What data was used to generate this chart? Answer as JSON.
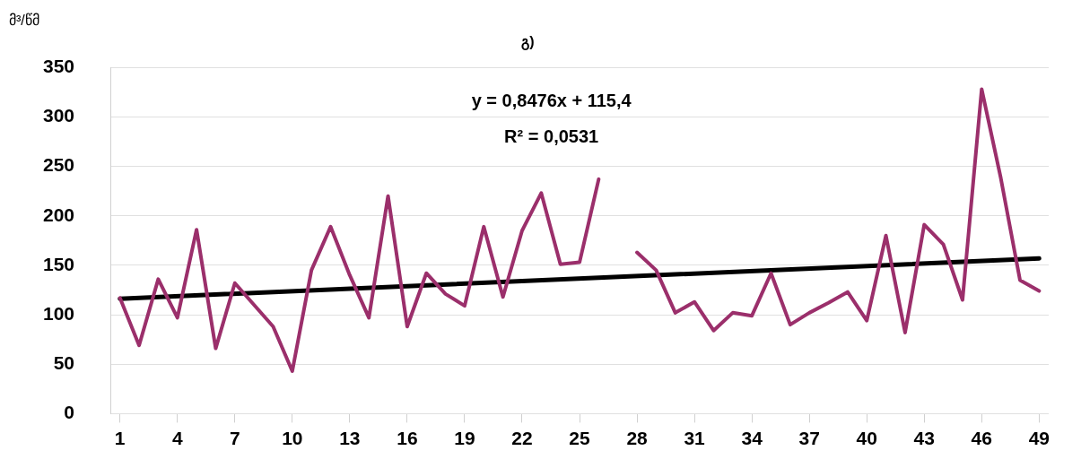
{
  "chart_data": {
    "type": "line",
    "title": "გ)",
    "ylabel": "მ³/წმ",
    "x": [
      1,
      2,
      3,
      4,
      5,
      6,
      7,
      8,
      9,
      10,
      11,
      12,
      13,
      14,
      15,
      16,
      17,
      18,
      19,
      20,
      21,
      22,
      23,
      24,
      25,
      26,
      27,
      28,
      29,
      30,
      31,
      32,
      33,
      34,
      35,
      36,
      37,
      38,
      39,
      40,
      41,
      42,
      43,
      44,
      45,
      46,
      47,
      48,
      49
    ],
    "series": [
      {
        "color": "#9b2f6b",
        "values": [
          117,
          69,
          136,
          97,
          186,
          66,
          132,
          110,
          88,
          43,
          145,
          189,
          140,
          97,
          220,
          88,
          142,
          121,
          109,
          189,
          118,
          185,
          223,
          151,
          153,
          237,
          null,
          163,
          145,
          102,
          113,
          84,
          102,
          99,
          142,
          90,
          102,
          112,
          123,
          94,
          180,
          82,
          191,
          171,
          115,
          328,
          238,
          135,
          124
        ]
      },
      {
        "type": "line",
        "color": "#000000",
        "x": [
          1,
          49
        ],
        "values": [
          116.2,
          156.9
        ]
      }
    ],
    "xlim": [
      0.5,
      49.5
    ],
    "xticks": [
      1,
      4,
      7,
      10,
      13,
      16,
      19,
      22,
      25,
      28,
      31,
      34,
      37,
      40,
      43,
      46,
      49
    ],
    "ylim": [
      0,
      350
    ],
    "yticks": [
      0,
      50,
      100,
      150,
      200,
      250,
      300,
      350
    ],
    "grid": "y",
    "legend": false,
    "marker": "none",
    "line_style": "solid",
    "annotations": [
      "y = 0,8476x + 115,4",
      "R² = 0,0531"
    ]
  }
}
